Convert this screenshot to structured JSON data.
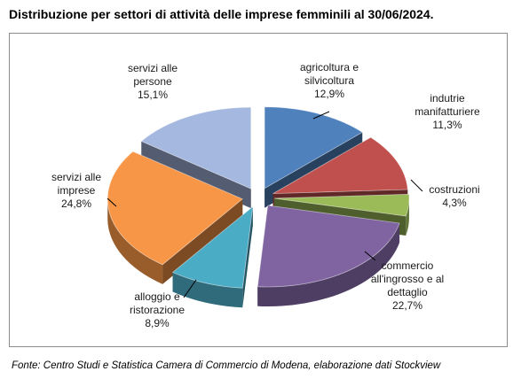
{
  "title": "Distribuzione per settori di attività delle imprese femminili al 30/06/2024.",
  "source": "Fonte: Centro Studi e Statistica Camera di Commercio di Modena, elaborazione dati Stockview",
  "chart_data": {
    "type": "pie",
    "title": "Distribuzione per settori di attività delle imprese femminili al 30/06/2024.",
    "exploded": true,
    "style": "3d",
    "slices": [
      {
        "label": [
          "agricoltura e",
          "silvicoltura"
        ],
        "value": 12.9,
        "display": "12,9%",
        "color": "#4f81bd"
      },
      {
        "label": [
          "indutrie",
          "manifatturiere"
        ],
        "value": 11.3,
        "display": "11,3%",
        "color": "#c0504d"
      },
      {
        "label": [
          "costruzioni"
        ],
        "value": 4.3,
        "display": "4,3%",
        "color": "#9bbb59"
      },
      {
        "label": [
          "commercio",
          "all'ingrosso e al",
          "dettaglio"
        ],
        "value": 22.7,
        "display": "22,7%",
        "color": "#8064a2"
      },
      {
        "label": [
          "alloggio e",
          "ristorazione"
        ],
        "value": 8.9,
        "display": "8,9%",
        "color": "#4bacc6"
      },
      {
        "label": [
          "servizi alle",
          "imprese"
        ],
        "value": 24.8,
        "display": "24,8%",
        "color": "#f79646"
      },
      {
        "label": [
          "servizi alle",
          "persone"
        ],
        "value": 15.1,
        "display": "15,1%",
        "color": "#a5b8df"
      }
    ]
  }
}
